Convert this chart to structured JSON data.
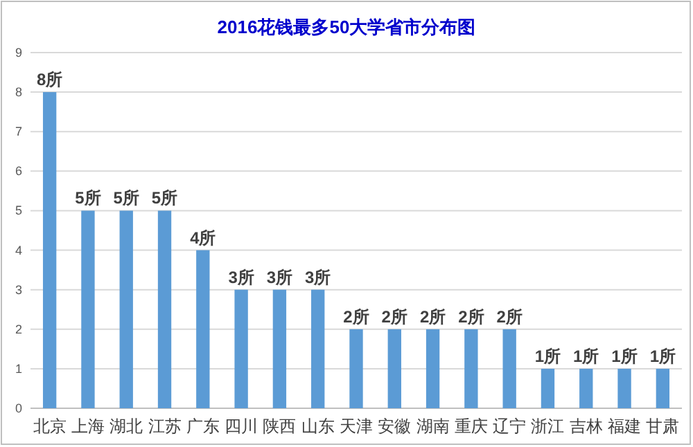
{
  "chart_data": {
    "type": "bar",
    "title": "2016花钱最多50大学省市分布图",
    "categories": [
      "北京",
      "上海",
      "湖北",
      "江苏",
      "广东",
      "四川",
      "陕西",
      "山东",
      "天津",
      "安徽",
      "湖南",
      "重庆",
      "辽宁",
      "浙江",
      "吉林",
      "福建",
      "甘肃"
    ],
    "values": [
      8,
      5,
      5,
      5,
      4,
      3,
      3,
      3,
      2,
      2,
      2,
      2,
      2,
      1,
      1,
      1,
      1
    ],
    "value_labels": [
      "8所",
      "5所",
      "5所",
      "5所",
      "4所",
      "3所",
      "3所",
      "3所",
      "2所",
      "2所",
      "2所",
      "2所",
      "2所",
      "1所",
      "1所",
      "1所",
      "1所"
    ],
    "color": "#5b9bd5",
    "ylim": [
      0,
      9
    ],
    "yticks": [
      0,
      1,
      2,
      3,
      4,
      5,
      6,
      7,
      8,
      9
    ],
    "grid": "y"
  }
}
